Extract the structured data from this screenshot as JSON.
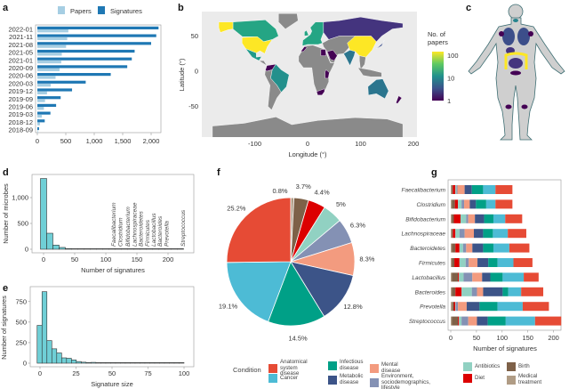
{
  "panel_labels": {
    "a": "a",
    "b": "b",
    "c": "c",
    "d": "d",
    "e": "e",
    "f": "f",
    "g": "g"
  },
  "legend": {
    "title": "Condition",
    "items": [
      {
        "label": "Anatomical\nsystem disease",
        "color": "#e64b35"
      },
      {
        "label": "Cancer",
        "color": "#4dbbd5"
      },
      {
        "label": "Infectious\ndisease",
        "color": "#00a087"
      },
      {
        "label": "Metabolic\ndisease",
        "color": "#3c5488"
      },
      {
        "label": "Mental disease",
        "color": "#f39b7f"
      },
      {
        "label": "Environment,\nsociodemographics, lifestyle",
        "color": "#8491b4"
      },
      {
        "label": "Antibiotics",
        "color": "#91d1c2"
      },
      {
        "label": "Diet",
        "color": "#dc0000"
      },
      {
        "label": "Birth",
        "color": "#7e6148"
      },
      {
        "label": "Medical treatment",
        "color": "#b09c85"
      }
    ]
  },
  "chart_data": [
    {
      "panel": "a",
      "type": "bar",
      "orientation": "horizontal",
      "categories": [
        "2022-01",
        "2021-11",
        "2021-08",
        "2021-05",
        "2021-01",
        "2020-09",
        "2020-06",
        "2020-03",
        "2019-12",
        "2019-09",
        "2019-06",
        "2019-03",
        "2018-12",
        "2018-09"
      ],
      "series": [
        {
          "name": "Papers",
          "color": "#a6cee3",
          "values": [
            545,
            525,
            505,
            430,
            420,
            390,
            320,
            235,
            170,
            135,
            115,
            80,
            45,
            10
          ]
        },
        {
          "name": "Signatures",
          "color": "#1f78b4",
          "values": [
            2130,
            2090,
            2000,
            1710,
            1660,
            1580,
            1290,
            850,
            610,
            410,
            330,
            230,
            130,
            30
          ]
        }
      ],
      "xticks": [
        0,
        500,
        1000,
        1500,
        2000
      ],
      "xtick_labels": [
        "0",
        "500",
        "1,000",
        "1,500",
        "2,000"
      ],
      "xlim": [
        0,
        2150
      ],
      "legend": "top"
    },
    {
      "panel": "b",
      "type": "choropleth",
      "xlabel": "Longitude (°)",
      "ylabel": "Latitude (°)",
      "xticks": [
        -100,
        0,
        100,
        200
      ],
      "xtick_labels": [
        "-100",
        "0",
        "100",
        "200"
      ],
      "yticks": [
        -50,
        0,
        50
      ],
      "ytick_labels": [
        "-50",
        "0",
        "50"
      ],
      "colorbar": {
        "title": "No. of papers",
        "scale": "log",
        "ticks": [
          1,
          10,
          100
        ],
        "tick_labels": [
          "1",
          "10",
          "100"
        ],
        "colormap": "viridis"
      },
      "no_data_color": "#8a8a8a",
      "regions": [
        {
          "name": "United States",
          "value": 100
        },
        {
          "name": "China",
          "value": 100
        },
        {
          "name": "Canada",
          "value": 15
        },
        {
          "name": "Europe",
          "value": 15
        },
        {
          "name": "Mexico",
          "value": 12
        },
        {
          "name": "Brazil",
          "value": 10
        },
        {
          "name": "Australia",
          "value": 6
        },
        {
          "name": "India",
          "value": 6
        },
        {
          "name": "Japan",
          "value": 3
        },
        {
          "name": "Russia",
          "value": 2
        },
        {
          "name": "Colombia",
          "value": 1
        },
        {
          "name": "Saudi Arabia",
          "value": 1
        },
        {
          "name": "Egypt",
          "value": 1
        },
        {
          "name": "Morocco",
          "value": 1
        },
        {
          "name": "Kenya",
          "value": 1
        },
        {
          "name": "South Africa",
          "value": 1
        },
        {
          "name": "New Zealand",
          "value": 1
        }
      ]
    },
    {
      "panel": "c",
      "type": "body-map",
      "colormap": "viridis",
      "regions": [
        {
          "name": "lungs",
          "value": 3
        },
        {
          "name": "axilla",
          "value": 1
        },
        {
          "name": "oral",
          "value": 8
        },
        {
          "name": "stomach",
          "value": 2
        },
        {
          "name": "gut",
          "value": 100
        },
        {
          "name": "vagina",
          "value": 1
        },
        {
          "name": "knees",
          "value": 1
        }
      ]
    },
    {
      "panel": "d",
      "type": "histogram",
      "xlabel": "Number of signatures",
      "ylabel": "Number of microbes",
      "bin_start": -5,
      "bin_width": 10,
      "counts": [
        1370,
        310,
        80,
        35,
        12,
        8,
        6,
        5,
        4,
        4,
        3,
        3,
        3,
        2,
        2,
        2,
        2,
        1,
        1,
        1,
        1,
        1,
        1
      ],
      "xticks": [
        0,
        50,
        100,
        150,
        200
      ],
      "yticks": [
        0,
        500,
        1000
      ],
      "ytick_labels": [
        "0",
        "500",
        "1,000"
      ],
      "annotations": [
        {
          "text": "Faecalibacterium",
          "x": 113
        },
        {
          "text": "Clostridium",
          "x": 121
        },
        {
          "text": "Bifidobacterium",
          "x": 136
        },
        {
          "text": "Lachnospiraceae",
          "x": 145
        },
        {
          "text": "Bacteroidetes",
          "x": 152
        },
        {
          "text": "Firmicutes",
          "x": 162
        },
        {
          "text": "Lactobacillus",
          "x": 172
        },
        {
          "text": "Bacteroides",
          "x": 179
        },
        {
          "text": "Prevotella",
          "x": 197
        },
        {
          "text": "Streptococcus",
          "x": 224
        }
      ]
    },
    {
      "panel": "e",
      "type": "histogram",
      "xlabel": "Signature size",
      "ylabel": "Number of signatures",
      "bin_start": -2,
      "bin_width": 3.4,
      "counts": [
        460,
        870,
        275,
        175,
        125,
        65,
        60,
        40,
        20,
        12,
        8,
        10,
        6,
        5,
        4,
        3,
        3,
        2,
        2,
        2,
        2,
        1,
        1,
        1,
        1,
        1,
        1,
        1,
        1,
        1
      ],
      "xticks": [
        0,
        25,
        50,
        75,
        100
      ],
      "yticks": [
        0,
        250,
        500,
        750
      ]
    },
    {
      "panel": "f",
      "type": "pie",
      "slices": [
        {
          "label": "Medical treatment",
          "value": 0.8,
          "text": "0.8%"
        },
        {
          "label": "Birth",
          "value": 3.7,
          "text": "3.7%"
        },
        {
          "label": "Diet",
          "value": 4.4,
          "text": "4.4%"
        },
        {
          "label": "Antibiotics",
          "value": 5,
          "text": "5%"
        },
        {
          "label": "Environment, sociodemographics, lifestyle",
          "value": 6.3,
          "text": "6.3%"
        },
        {
          "label": "Mental disease",
          "value": 8.3,
          "text": "8.3%"
        },
        {
          "label": "Metabolic disease",
          "value": 12.8,
          "text": "12.8%"
        },
        {
          "label": "Infectious disease",
          "value": 14.5,
          "text": "14.5%"
        },
        {
          "label": "Cancer",
          "value": 19.1,
          "text": "19.1%"
        },
        {
          "label": "Anatomical system disease",
          "value": 25.2,
          "text": "25.2%"
        }
      ]
    },
    {
      "panel": "g",
      "type": "bar",
      "stacked": true,
      "orientation": "horizontal",
      "xlabel": "Number of signatures",
      "xticks": [
        0,
        50,
        100,
        150,
        200
      ],
      "categories": [
        "Faecalibacterium",
        "Clostridium",
        "Bifidobacterium",
        "Lachnospiraceae",
        "Bacteroidetes",
        "Firmicutes",
        "Lactobacillus",
        "Bacteroides",
        "Prevotella",
        "Streptococcus"
      ],
      "series": [
        {
          "name": "Medical treatment",
          "values": [
            2,
            2,
            2,
            2,
            2,
            2,
            2,
            2,
            3,
            2
          ]
        },
        {
          "name": "Birth",
          "values": [
            2,
            6,
            4,
            2,
            7,
            5,
            12,
            7,
            3,
            12
          ]
        },
        {
          "name": "Diet",
          "values": [
            5,
            6,
            13,
            5,
            8,
            10,
            2,
            12,
            3,
            2
          ]
        },
        {
          "name": "Antibiotics",
          "values": [
            2,
            7,
            11,
            8,
            7,
            12,
            9,
            20,
            1,
            5
          ]
        },
        {
          "name": "Environment, sociodemographics, lifestyle",
          "values": [
            2,
            5,
            4,
            10,
            6,
            6,
            17,
            10,
            4,
            13
          ]
        },
        {
          "name": "Mental disease",
          "values": [
            14,
            11,
            13,
            18,
            12,
            17,
            19,
            12,
            17,
            17
          ]
        },
        {
          "name": "Metabolic disease",
          "values": [
            14,
            12,
            18,
            18,
            21,
            21,
            16,
            38,
            25,
            21
          ]
        },
        {
          "name": "Infectious disease",
          "values": [
            22,
            20,
            18,
            19,
            20,
            18,
            24,
            11,
            35,
            35
          ]
        },
        {
          "name": "Cancer",
          "values": [
            24,
            18,
            23,
            29,
            31,
            31,
            41,
            25,
            49,
            57
          ]
        },
        {
          "name": "Anatomical system disease",
          "values": [
            33,
            33,
            33,
            36,
            39,
            37,
            29,
            43,
            51,
            51
          ]
        }
      ]
    }
  ]
}
